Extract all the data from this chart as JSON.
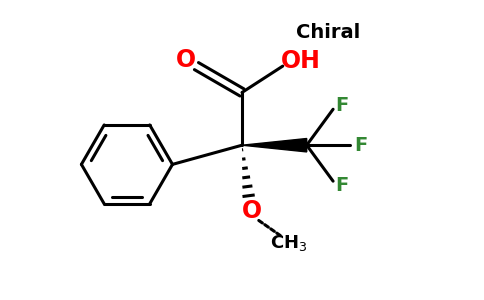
{
  "bg_color": "#ffffff",
  "line_color": "#000000",
  "oxygen_color": "#ff0000",
  "fluorine_color": "#338833",
  "chiral_color": "#000000",
  "line_width": 2.2,
  "figsize": [
    4.84,
    3.0
  ],
  "dpi": 100,
  "xlim": [
    0,
    10
  ],
  "ylim": [
    0,
    6.2
  ]
}
